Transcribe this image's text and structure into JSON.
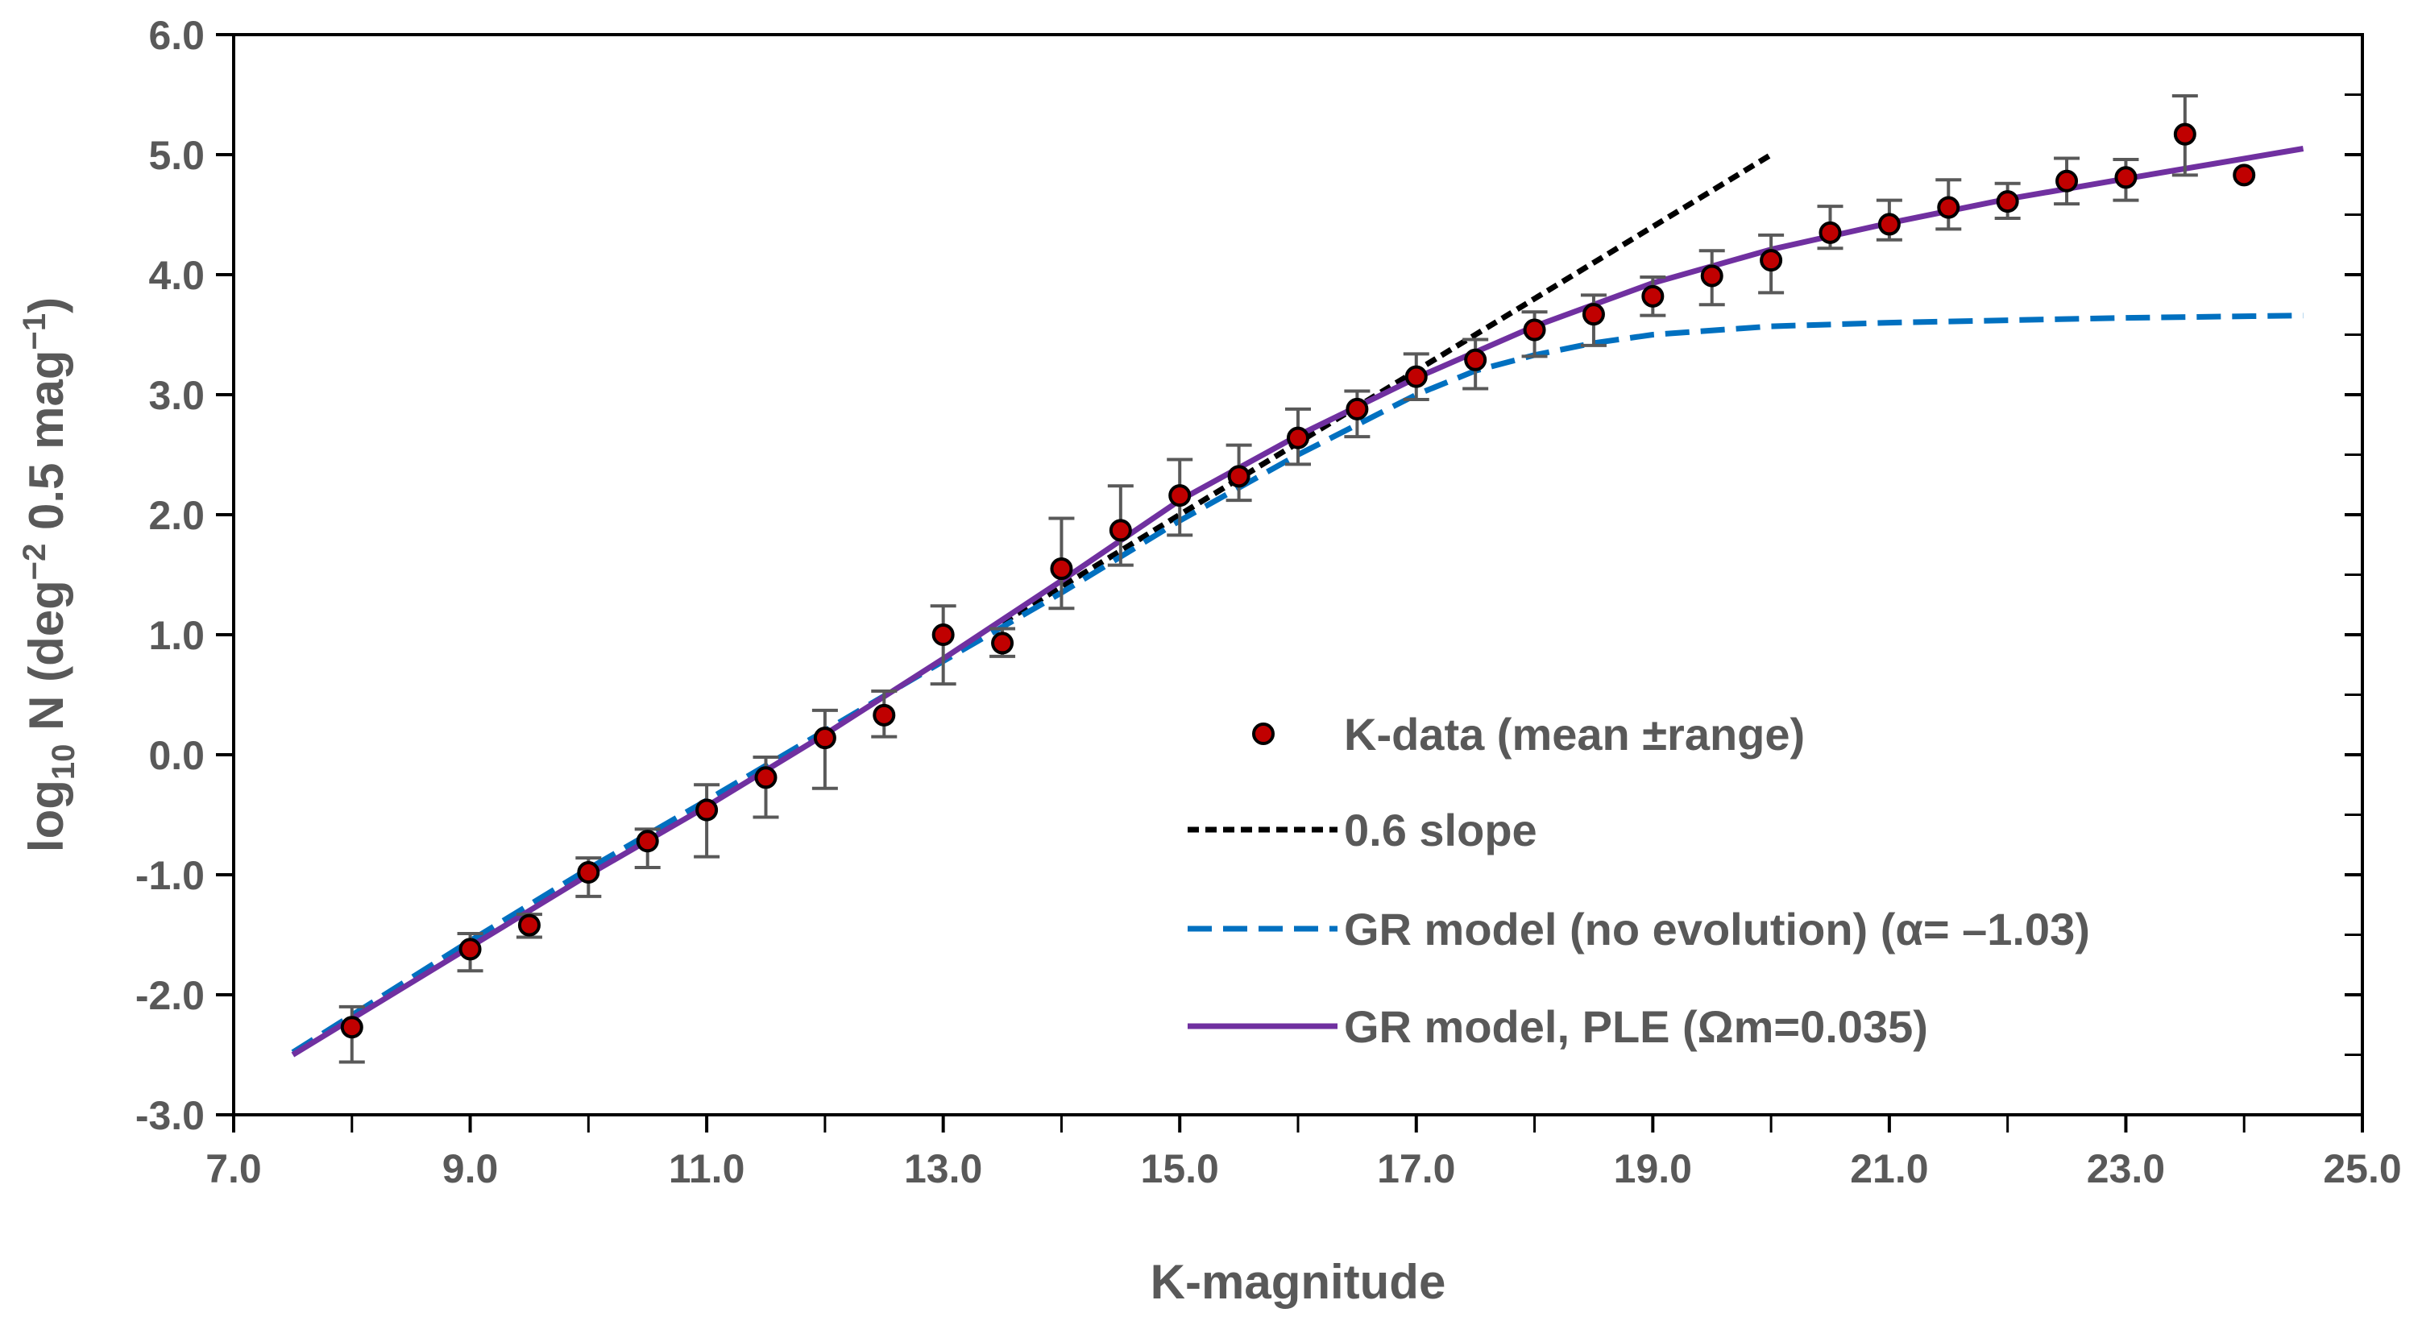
{
  "chart_data": {
    "type": "scatter",
    "title": "",
    "xlabel": "K-magnitude",
    "ylabel_parts": [
      "log",
      "10",
      " N (deg",
      "−2",
      " 0.5 mag",
      "−1",
      ")"
    ],
    "xlim": [
      7.0,
      25.0
    ],
    "ylim": [
      -3.0,
      6.0
    ],
    "x_ticks": [
      7.0,
      9.0,
      11.0,
      13.0,
      15.0,
      17.0,
      19.0,
      21.0,
      23.0,
      25.0
    ],
    "x_tick_labels": [
      "7.0",
      "9.0",
      "11.0",
      "13.0",
      "15.0",
      "17.0",
      "19.0",
      "21.0",
      "23.0",
      "25.0"
    ],
    "x_minor_ticks": [
      8.0,
      10.0,
      12.0,
      14.0,
      16.0,
      18.0,
      20.0,
      22.0,
      24.0
    ],
    "y_ticks": [
      6.0,
      5.0,
      4.0,
      3.0,
      2.0,
      1.0,
      0.0,
      -1.0,
      -2.0,
      -3.0
    ],
    "y_tick_labels": [
      "6.0",
      "5.0",
      "4.0",
      "3.0",
      "2.0",
      "1.0",
      "0.0",
      "-1.0",
      "-2.0",
      "-3.0"
    ],
    "grid": false,
    "legend_position": "lower-right",
    "series": [
      {
        "name": "K-data (mean ±range)",
        "kind": "scatter",
        "color": "#c00000",
        "edge_color": "#000000",
        "error_color": "#595959",
        "points": [
          {
            "x": 8.0,
            "y": -2.27,
            "lo": -2.56,
            "hi": -2.1
          },
          {
            "x": 9.0,
            "y": -1.62,
            "lo": -1.8,
            "hi": -1.49
          },
          {
            "x": 9.5,
            "y": -1.42,
            "lo": -1.52,
            "hi": -1.33
          },
          {
            "x": 10.0,
            "y": -0.98,
            "lo": -1.18,
            "hi": -0.86
          },
          {
            "x": 10.5,
            "y": -0.72,
            "lo": -0.94,
            "hi": -0.62
          },
          {
            "x": 11.0,
            "y": -0.46,
            "lo": -0.85,
            "hi": -0.25
          },
          {
            "x": 11.5,
            "y": -0.19,
            "lo": -0.52,
            "hi": -0.02
          },
          {
            "x": 12.0,
            "y": 0.14,
            "lo": -0.28,
            "hi": 0.37
          },
          {
            "x": 12.5,
            "y": 0.33,
            "lo": 0.15,
            "hi": 0.53
          },
          {
            "x": 13.0,
            "y": 1.0,
            "lo": 0.59,
            "hi": 1.24
          },
          {
            "x": 13.5,
            "y": 0.93,
            "lo": 0.82,
            "hi": 1.05
          },
          {
            "x": 14.0,
            "y": 1.55,
            "lo": 1.22,
            "hi": 1.97
          },
          {
            "x": 14.5,
            "y": 1.87,
            "lo": 1.58,
            "hi": 2.24
          },
          {
            "x": 15.0,
            "y": 2.16,
            "lo": 1.83,
            "hi": 2.46
          },
          {
            "x": 15.5,
            "y": 2.32,
            "lo": 2.12,
            "hi": 2.58
          },
          {
            "x": 16.0,
            "y": 2.64,
            "lo": 2.42,
            "hi": 2.88
          },
          {
            "x": 16.5,
            "y": 2.88,
            "lo": 2.65,
            "hi": 3.03
          },
          {
            "x": 17.0,
            "y": 3.15,
            "lo": 2.96,
            "hi": 3.34
          },
          {
            "x": 17.5,
            "y": 3.29,
            "lo": 3.05,
            "hi": 3.46
          },
          {
            "x": 18.0,
            "y": 3.54,
            "lo": 3.32,
            "hi": 3.69
          },
          {
            "x": 18.5,
            "y": 3.67,
            "lo": 3.41,
            "hi": 3.83
          },
          {
            "x": 19.0,
            "y": 3.82,
            "lo": 3.66,
            "hi": 3.98
          },
          {
            "x": 19.5,
            "y": 3.99,
            "lo": 3.75,
            "hi": 4.2
          },
          {
            "x": 20.0,
            "y": 4.12,
            "lo": 3.85,
            "hi": 4.33
          },
          {
            "x": 20.5,
            "y": 4.35,
            "lo": 4.22,
            "hi": 4.57
          },
          {
            "x": 21.0,
            "y": 4.42,
            "lo": 4.29,
            "hi": 4.62
          },
          {
            "x": 21.5,
            "y": 4.56,
            "lo": 4.38,
            "hi": 4.79
          },
          {
            "x": 22.0,
            "y": 4.61,
            "lo": 4.47,
            "hi": 4.76
          },
          {
            "x": 22.5,
            "y": 4.78,
            "lo": 4.59,
            "hi": 4.97
          },
          {
            "x": 23.0,
            "y": 4.81,
            "lo": 4.62,
            "hi": 4.96
          },
          {
            "x": 23.5,
            "y": 5.17,
            "lo": 4.83,
            "hi": 5.49
          },
          {
            "x": 24.0,
            "y": 4.83,
            "lo": null,
            "hi": null
          }
        ]
      },
      {
        "name": "0.6 slope",
        "kind": "line",
        "color": "#000000",
        "dash": "short",
        "x": [
          13.5,
          20.0
        ],
        "y": [
          1.1,
          5.0
        ]
      },
      {
        "name": "GR model (no evolution) (α= –1.03)",
        "kind": "line",
        "color": "#0070c0",
        "dash": "long",
        "x": [
          7.5,
          8.0,
          9.0,
          10.0,
          11.0,
          12.0,
          13.0,
          14.0,
          15.0,
          16.0,
          17.0,
          17.5,
          18.0,
          18.5,
          19.0,
          20.0,
          21.0,
          22.0,
          23.0,
          24.5
        ],
        "y": [
          -2.48,
          -2.17,
          -1.55,
          -0.95,
          -0.38,
          0.2,
          0.78,
          1.35,
          1.95,
          2.5,
          3.0,
          3.2,
          3.33,
          3.43,
          3.5,
          3.57,
          3.6,
          3.62,
          3.64,
          3.66
        ]
      },
      {
        "name": "GR model, PLE (Ωm=0.035)",
        "kind": "line",
        "color": "#7030a0",
        "dash": "solid",
        "x": [
          7.5,
          8.0,
          9.0,
          10.0,
          11.0,
          12.0,
          13.0,
          14.0,
          15.0,
          16.0,
          17.0,
          18.0,
          19.0,
          20.0,
          21.0,
          22.0,
          23.0,
          24.5
        ],
        "y": [
          -2.5,
          -2.2,
          -1.6,
          -1.0,
          -0.43,
          0.17,
          0.8,
          1.45,
          2.12,
          2.66,
          3.14,
          3.57,
          3.93,
          4.21,
          4.43,
          4.63,
          4.8,
          5.05
        ]
      }
    ]
  }
}
